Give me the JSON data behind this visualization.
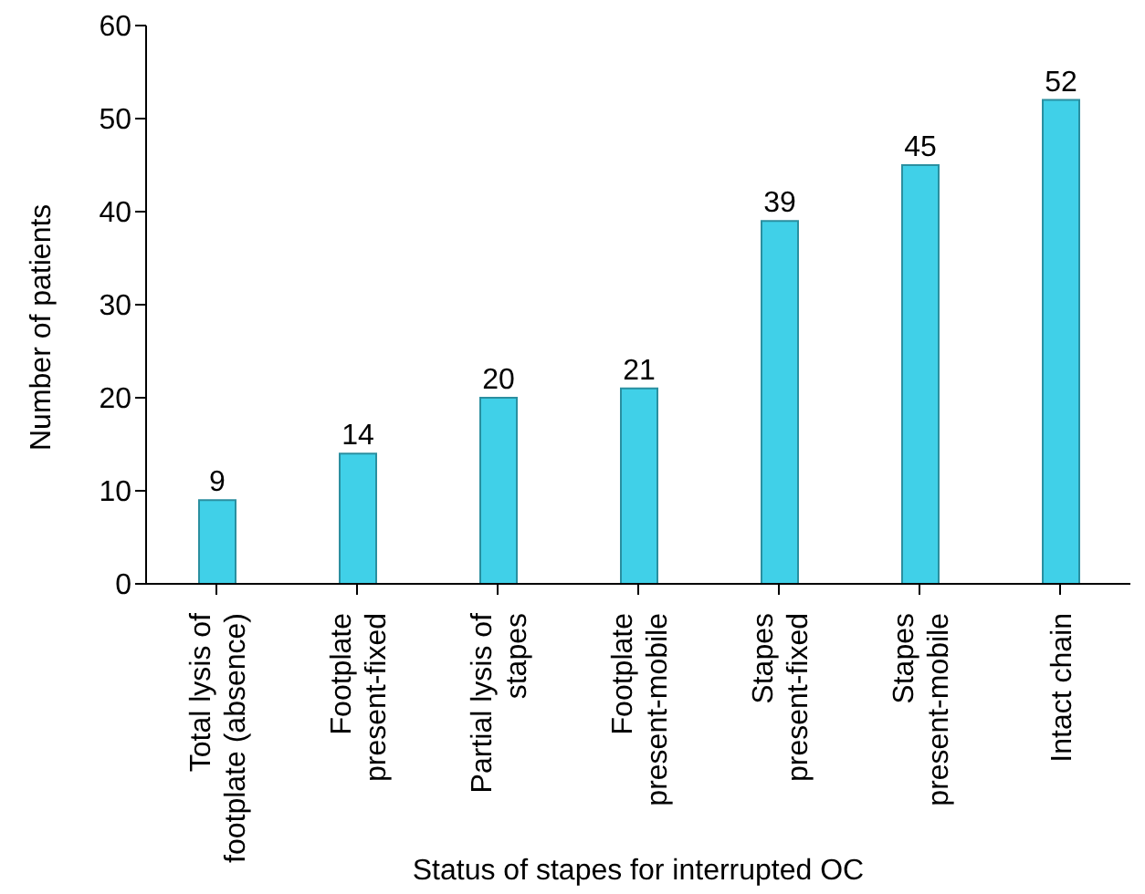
{
  "chart_data": {
    "type": "bar",
    "xlabel": "Status of stapes for interrupted OC",
    "ylabel": "Number of patients",
    "categories": [
      "Total lysis of\nfootplate (absence)",
      "Footplate\npresent-fixed",
      "Partial lysis of\nstapes",
      "Footplate\npresent-mobile",
      "Stapes\npresent-fixed",
      "Stapes\npresent-mobile",
      "Intact chain"
    ],
    "values": [
      9,
      14,
      20,
      21,
      39,
      45,
      52
    ],
    "color": "#40d0e8",
    "data_labels": true,
    "ylim": [
      0,
      60
    ],
    "yticks": [
      0,
      10,
      20,
      30,
      40,
      50,
      60
    ]
  }
}
